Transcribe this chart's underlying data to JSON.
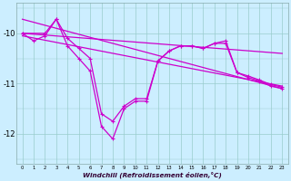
{
  "background_color": "#cceeff",
  "line_color": "#cc00cc",
  "grid_color": "#99cccc",
  "xlabel": "Windchill (Refroidissement éolien,°C)",
  "ylim": [
    -12.6,
    -9.4
  ],
  "xlim": [
    -0.5,
    23.5
  ],
  "x_ticks": [
    0,
    1,
    2,
    3,
    4,
    5,
    6,
    7,
    8,
    9,
    10,
    11,
    12,
    13,
    14,
    15,
    16,
    17,
    18,
    19,
    20,
    21,
    22,
    23
  ],
  "y_ticks": [
    -12,
    -11,
    -10
  ],
  "line1_x": [
    0,
    1,
    2,
    3,
    4,
    5,
    6,
    7,
    8,
    9,
    10,
    11,
    12,
    13,
    14,
    15,
    16,
    17,
    18,
    19,
    20,
    21,
    22,
    23
  ],
  "line1_y": [
    -10.0,
    -10.15,
    -10.05,
    -9.72,
    -10.25,
    -10.5,
    -10.75,
    -11.85,
    -12.1,
    -11.5,
    -11.35,
    -11.35,
    -10.55,
    -10.35,
    -10.25,
    -10.25,
    -10.3,
    -10.2,
    -10.2,
    -10.78,
    -10.88,
    -10.95,
    -11.05,
    -11.1
  ],
  "line2_x": [
    0,
    2,
    3,
    4,
    5,
    6,
    7,
    8,
    9,
    10,
    11,
    12,
    13,
    14,
    15,
    16,
    17,
    18,
    19,
    20,
    21,
    22,
    23
  ],
  "line2_y": [
    -10.0,
    -10.0,
    -9.72,
    -10.1,
    -10.3,
    -10.5,
    -11.6,
    -11.75,
    -11.45,
    -11.3,
    -11.3,
    -10.55,
    -10.35,
    -10.25,
    -10.25,
    -10.3,
    -10.2,
    -10.15,
    -10.78,
    -10.85,
    -10.93,
    -11.02,
    -11.07
  ],
  "trend1_x": [
    0,
    23
  ],
  "trend1_y": [
    -10.0,
    -10.4
  ],
  "trend2_x": [
    0,
    23
  ],
  "trend2_y": [
    -9.72,
    -11.1
  ],
  "trend3_x": [
    0,
    23
  ],
  "trend3_y": [
    -10.05,
    -11.05
  ],
  "marker_size": 3,
  "line_width": 0.9
}
